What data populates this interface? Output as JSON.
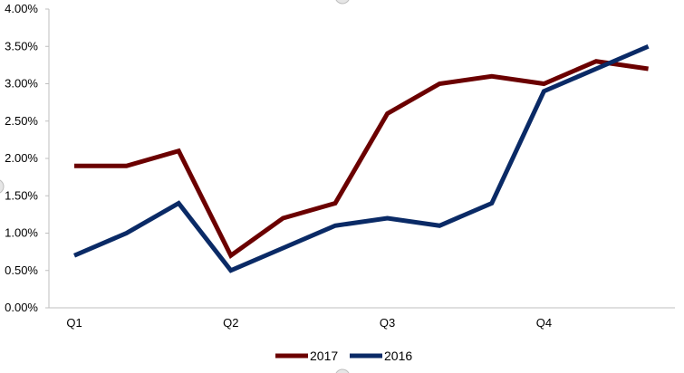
{
  "chart_data": {
    "type": "line",
    "title": "",
    "xlabel": "",
    "ylabel": "",
    "ylim": [
      0,
      0.04
    ],
    "y_tick_values": [
      0,
      0.005,
      0.01,
      0.015,
      0.02,
      0.025,
      0.03,
      0.035,
      0.04
    ],
    "y_tick_labels": [
      "0.00%",
      "0.50%",
      "1.00%",
      "1.50%",
      "2.00%",
      "2.50%",
      "3.00%",
      "3.50%",
      "4.00%"
    ],
    "x_tick_labels": [
      "Q1",
      "Q2",
      "Q3",
      "Q4"
    ],
    "x_tick_index": [
      0,
      3,
      6,
      9
    ],
    "point_count": 12,
    "grid": false,
    "legend_position": "bottom",
    "series": [
      {
        "name": "2017",
        "color": "#6b0000",
        "values": [
          0.019,
          0.019,
          0.021,
          0.007,
          0.012,
          0.014,
          0.026,
          0.03,
          0.031,
          0.03,
          0.033,
          0.032
        ]
      },
      {
        "name": "2016",
        "color": "#0a2a66",
        "values": [
          0.007,
          0.01,
          0.014,
          0.005,
          0.008,
          0.011,
          0.012,
          0.011,
          0.014,
          0.029,
          0.032,
          0.035
        ]
      }
    ]
  }
}
